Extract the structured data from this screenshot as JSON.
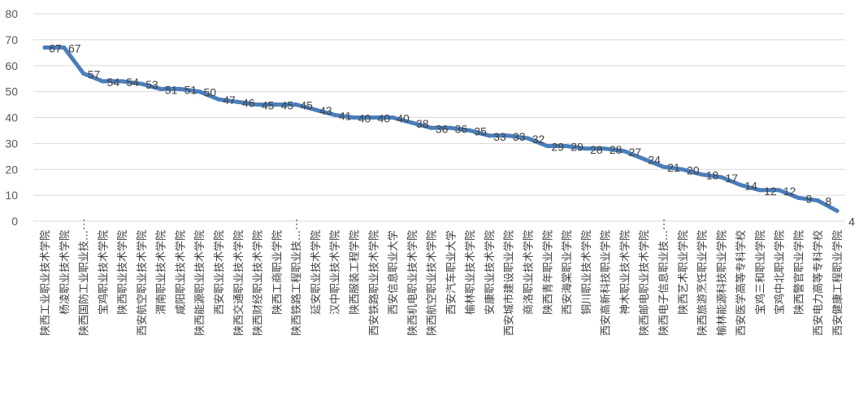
{
  "chart_data": {
    "type": "line",
    "title": "",
    "xlabel": "",
    "ylabel": "",
    "ylim": [
      0,
      80
    ],
    "yticks": [
      0,
      10,
      20,
      30,
      40,
      50,
      60,
      70,
      80
    ],
    "grid": true,
    "legend": "none",
    "line_color": "#4a7ebb",
    "categories": [
      "陕西工业职业技术学院",
      "杨凌职业技术学院",
      "陕西国防工业职业技…",
      "宝鸡职业技术学院",
      "陕西职业技术学院",
      "西安航空职业技术学院",
      "渭南职业技术学院",
      "咸阳职业技术学院",
      "陕西能源职业技术学院",
      "西安职业技术学院",
      "陕西交通职业技术学院",
      "陕西财经职业技术学院",
      "陕西工商职业学院",
      "陕西铁路工程职业技…",
      "延安职业技术学院",
      "汉中职业技术学院",
      "陕西服装工程学院",
      "西安铁路职业技术学院",
      "西安信息职业大学",
      "陕西机电职业技术学院",
      "陕西航空职业技术学院",
      "西安汽车职业大学",
      "榆林职业技术学院",
      "安康职业技术学院",
      "西安城市建设职业学院",
      "商洛职业技术学院",
      "陕西青年职业学院",
      "西安海棠职业学院",
      "铜川职业技术学院",
      "西安高新科技职业学院",
      "神木职业技术学院",
      "陕西邮电职业技术学院",
      "陕西电子信息职业技…",
      "陕西艺术职业学院",
      "陕西旅游烹饪职业学院",
      "榆林能源科技职业学院",
      "西安医学高等专科学校",
      "宝鸡三和职业学院",
      "宝鸡中北职业学院",
      "陕西警官职业学院",
      "西安电力高等专科学校",
      "西安健康工程职业学院"
    ],
    "values": [
      67,
      67,
      57,
      54,
      54,
      53,
      51,
      51,
      50,
      47,
      46,
      45,
      45,
      45,
      43,
      41,
      40,
      40,
      40,
      38,
      36,
      36,
      35,
      33,
      33,
      32,
      29,
      29,
      28,
      28,
      27,
      24,
      21,
      20,
      18,
      17,
      14,
      12,
      12,
      9,
      8,
      4
    ],
    "data_labels": [
      "67",
      "67",
      "57",
      "54",
      "54",
      "53",
      "51",
      "51",
      "50",
      "47",
      "46",
      "45",
      "45",
      "45",
      "43",
      "41",
      "40",
      "40",
      "40",
      "38",
      "36",
      "36",
      "35",
      "33",
      "33",
      "32",
      "29",
      "29",
      "28",
      "28",
      "27",
      "24",
      "21",
      "20",
      "18",
      "17",
      "14",
      "12",
      "12",
      "9",
      "8",
      "4"
    ],
    "category_group_marks": [
      "⋮",
      "⋮",
      "⋮"
    ]
  }
}
